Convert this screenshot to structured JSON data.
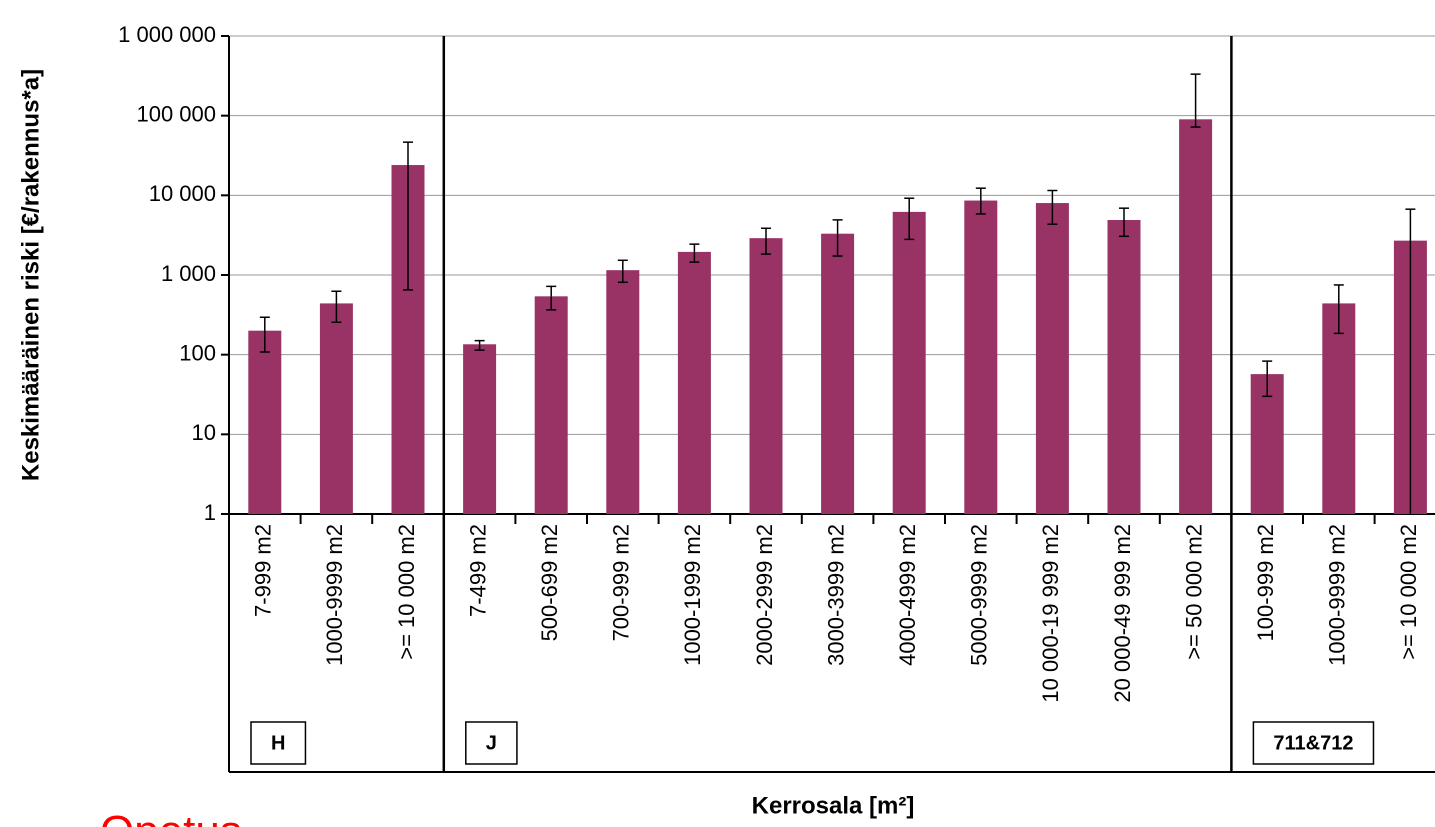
{
  "chart_data": {
    "type": "bar",
    "y_label": "Keskimääräinen riski [€/rakennus*a]",
    "x_label": "Kerrosala [m²]",
    "annotation": "Opetus-",
    "color": "#993366",
    "log": true,
    "grid": true,
    "ylim": [
      1,
      1000000
    ],
    "yticks": [
      1,
      10,
      100,
      {
        "value": 1000,
        "label": "1 000"
      },
      {
        "value": 10000,
        "label": "10 000"
      },
      {
        "value": 100000,
        "label": "100 000"
      },
      {
        "value": 1000000,
        "label": "1 000 000"
      }
    ],
    "groups": [
      {
        "label": "H",
        "categories": [
          "7-999 m2",
          "1000-9999 m2",
          ">= 10 000 m2"
        ],
        "values": [
          200,
          440,
          24000
        ],
        "error_plus": [
          95,
          185,
          22500
        ],
        "error_minus": [
          92,
          185,
          23350
        ]
      },
      {
        "label": "J",
        "categories": [
          "7-499 m2",
          "500-699 m2",
          "700-999 m2",
          "1000-1999 m2",
          "2000-2999 m2",
          "3000-3999 m2",
          "4000-4999 m2",
          "5000-9999 m2",
          "10 000-19 999 m2",
          "20 000-49 999 m2",
          ">= 50 000 m2"
        ],
        "values": [
          135,
          540,
          1150,
          1950,
          2900,
          3300,
          6200,
          8600,
          8000,
          4900,
          90000
        ],
        "error_plus": [
          15,
          180,
          380,
          490,
          960,
          1620,
          3000,
          3700,
          3500,
          2000,
          242000
        ],
        "error_minus": [
          21,
          175,
          340,
          500,
          1070,
          1570,
          3400,
          2760,
          3660,
          1840,
          18000
        ]
      },
      {
        "label": "711&712",
        "categories": [
          "100-999 m2",
          "1000-9999 m2",
          ">= 10 000 m2"
        ],
        "values": [
          57,
          440,
          2700
        ],
        "error_plus": [
          26,
          310,
          4000
        ],
        "error_minus": [
          27,
          255,
          2700
        ]
      }
    ]
  }
}
